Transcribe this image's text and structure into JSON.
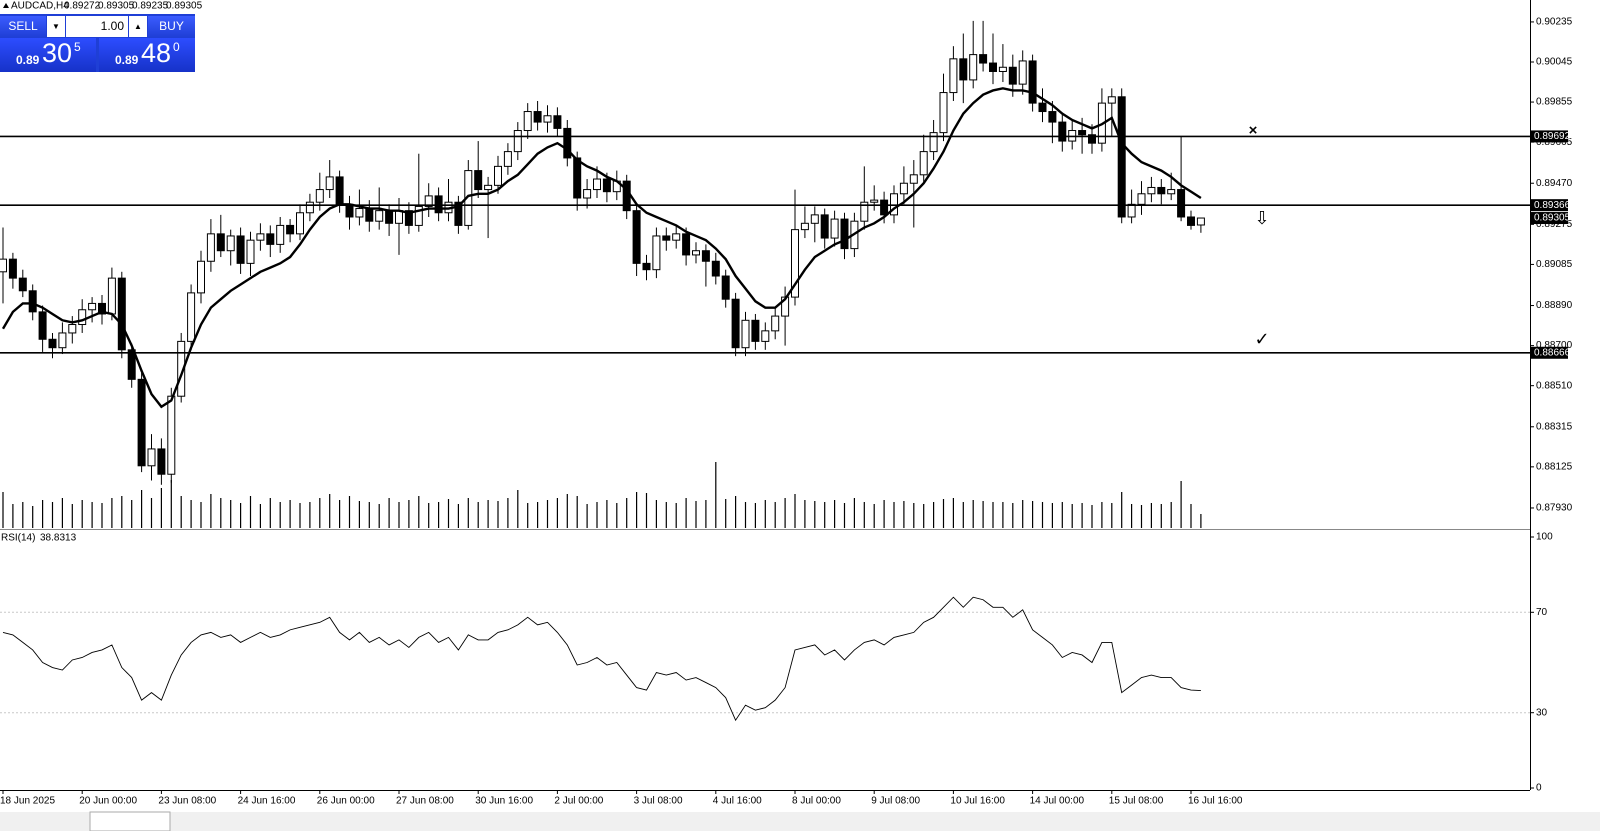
{
  "trade_panel": {
    "sell": "SELL",
    "lot": "1.00",
    "buy": "BUY",
    "bid": {
      "big": "0.89",
      "pips": "30",
      "point": "5"
    },
    "ask": {
      "big": "0.89",
      "pips": "48",
      "point": "0"
    }
  },
  "chart_data": [
    {
      "type": "candlestick",
      "title": "AUDCAD,H4",
      "categories": [
        "18 Jun 2025",
        null,
        null,
        null,
        null,
        null,
        null,
        null,
        "20 Jun 00:00",
        null,
        null,
        null,
        null,
        null,
        null,
        null,
        "23 Jun 08:00",
        null,
        null,
        null,
        null,
        null,
        null,
        null,
        "24 Jun 16:00",
        null,
        null,
        null,
        null,
        null,
        null,
        null,
        "26 Jun 00:00",
        null,
        null,
        null,
        null,
        null,
        null,
        null,
        "27 Jun 08:00",
        null,
        null,
        null,
        null,
        null,
        null,
        null,
        "30 Jun 16:00",
        null,
        null,
        null,
        null,
        null,
        null,
        null,
        "2 Jul 00:00",
        null,
        null,
        null,
        null,
        null,
        null,
        null,
        "3 Jul 08:00",
        null,
        null,
        null,
        null,
        null,
        null,
        null,
        "4 Jul 16:00",
        null,
        null,
        null,
        null,
        null,
        null,
        null,
        "8 Jul 00:00",
        null,
        null,
        null,
        null,
        null,
        null,
        null,
        "9 Jul 08:00",
        null,
        null,
        null,
        null,
        null,
        null,
        null,
        "10 Jul 16:00",
        null,
        null,
        null,
        null,
        null,
        null,
        null,
        "14 Jul 00:00",
        null,
        null,
        null,
        null,
        null,
        null,
        null,
        "15 Jul 08:00",
        null,
        null,
        null,
        null,
        null,
        null,
        null,
        "16 Jul 16:00",
        null
      ],
      "ohlc": [
        [
          0.8905,
          0.8926,
          0.889,
          0.8911
        ],
        [
          0.8911,
          0.8914,
          0.8897,
          0.8902
        ],
        [
          0.8902,
          0.8906,
          0.8893,
          0.8896
        ],
        [
          0.8896,
          0.8899,
          0.8882,
          0.8886
        ],
        [
          0.8886,
          0.8889,
          0.8867,
          0.8873
        ],
        [
          0.8873,
          0.8876,
          0.8864,
          0.8869
        ],
        [
          0.8869,
          0.8881,
          0.8866,
          0.8876
        ],
        [
          0.8876,
          0.8884,
          0.8871,
          0.888
        ],
        [
          0.888,
          0.8892,
          0.8876,
          0.8887
        ],
        [
          0.8887,
          0.8893,
          0.8881,
          0.889
        ],
        [
          0.889,
          0.8894,
          0.888,
          0.8885
        ],
        [
          0.8885,
          0.8907,
          0.8882,
          0.8902
        ],
        [
          0.8902,
          0.8905,
          0.8864,
          0.8868
        ],
        [
          0.8868,
          0.8871,
          0.885,
          0.8854
        ],
        [
          0.8854,
          0.8857,
          0.881,
          0.8813
        ],
        [
          0.8813,
          0.8828,
          0.8806,
          0.8821
        ],
        [
          0.8821,
          0.8826,
          0.8804,
          0.8809
        ],
        [
          0.8809,
          0.885,
          0.8805,
          0.8846
        ],
        [
          0.8846,
          0.8876,
          0.8843,
          0.8872
        ],
        [
          0.8872,
          0.8899,
          0.8868,
          0.8895
        ],
        [
          0.8895,
          0.8915,
          0.889,
          0.891
        ],
        [
          0.891,
          0.893,
          0.8905,
          0.8923
        ],
        [
          0.8923,
          0.8932,
          0.8912,
          0.8915
        ],
        [
          0.8915,
          0.8925,
          0.8908,
          0.8922
        ],
        [
          0.8922,
          0.8926,
          0.8904,
          0.8909
        ],
        [
          0.8909,
          0.8924,
          0.8903,
          0.892
        ],
        [
          0.892,
          0.8928,
          0.8915,
          0.8923
        ],
        [
          0.8923,
          0.8927,
          0.8912,
          0.8918
        ],
        [
          0.8918,
          0.8931,
          0.8914,
          0.8927
        ],
        [
          0.8927,
          0.893,
          0.8919,
          0.8923
        ],
        [
          0.8923,
          0.8937,
          0.892,
          0.8933
        ],
        [
          0.8933,
          0.8942,
          0.8929,
          0.8938
        ],
        [
          0.8938,
          0.8952,
          0.8934,
          0.8944
        ],
        [
          0.8944,
          0.8958,
          0.894,
          0.895
        ],
        [
          0.895,
          0.8953,
          0.8933,
          0.8937
        ],
        [
          0.8937,
          0.8941,
          0.8925,
          0.8931
        ],
        [
          0.8931,
          0.8944,
          0.8927,
          0.8935
        ],
        [
          0.8935,
          0.8939,
          0.8924,
          0.8929
        ],
        [
          0.8929,
          0.8945,
          0.8925,
          0.8934
        ],
        [
          0.8934,
          0.8937,
          0.8922,
          0.8928
        ],
        [
          0.8928,
          0.894,
          0.8913,
          0.8934
        ],
        [
          0.8934,
          0.8938,
          0.8923,
          0.8927
        ],
        [
          0.8927,
          0.8961,
          0.8924,
          0.8936
        ],
        [
          0.8936,
          0.8947,
          0.8931,
          0.8941
        ],
        [
          0.8941,
          0.8945,
          0.8929,
          0.8933
        ],
        [
          0.8933,
          0.8949,
          0.8929,
          0.8938
        ],
        [
          0.8938,
          0.8941,
          0.8923,
          0.8927
        ],
        [
          0.8927,
          0.8958,
          0.8925,
          0.8953
        ],
        [
          0.8953,
          0.8967,
          0.894,
          0.8944
        ],
        [
          0.8944,
          0.895,
          0.8921,
          0.8946
        ],
        [
          0.8946,
          0.896,
          0.8942,
          0.8955
        ],
        [
          0.8955,
          0.8966,
          0.8951,
          0.8962
        ],
        [
          0.8962,
          0.8976,
          0.8958,
          0.8972
        ],
        [
          0.8972,
          0.8985,
          0.8968,
          0.8981
        ],
        [
          0.8981,
          0.8986,
          0.8972,
          0.8976
        ],
        [
          0.8976,
          0.8984,
          0.8971,
          0.8979
        ],
        [
          0.8979,
          0.8983,
          0.8969,
          0.8973
        ],
        [
          0.8973,
          0.8977,
          0.8955,
          0.8959
        ],
        [
          0.8959,
          0.8962,
          0.8934,
          0.894
        ],
        [
          0.894,
          0.8949,
          0.8935,
          0.8944
        ],
        [
          0.8944,
          0.8955,
          0.894,
          0.8949
        ],
        [
          0.8949,
          0.8952,
          0.8938,
          0.8943
        ],
        [
          0.8943,
          0.8953,
          0.8939,
          0.8948
        ],
        [
          0.8948,
          0.8951,
          0.893,
          0.8934
        ],
        [
          0.8934,
          0.8937,
          0.8903,
          0.8909
        ],
        [
          0.8909,
          0.8913,
          0.8901,
          0.8906
        ],
        [
          0.8906,
          0.8926,
          0.8902,
          0.8922
        ],
        [
          0.8922,
          0.8926,
          0.8915,
          0.892
        ],
        [
          0.892,
          0.8927,
          0.8916,
          0.8923
        ],
        [
          0.8923,
          0.8926,
          0.8908,
          0.8913
        ],
        [
          0.8913,
          0.8919,
          0.8909,
          0.8915
        ],
        [
          0.8915,
          0.8918,
          0.8898,
          0.891
        ],
        [
          0.891,
          0.8914,
          0.8899,
          0.8903
        ],
        [
          0.8903,
          0.8906,
          0.8888,
          0.8892
        ],
        [
          0.8892,
          0.8895,
          0.8865,
          0.8869
        ],
        [
          0.8869,
          0.8886,
          0.8865,
          0.8882
        ],
        [
          0.8882,
          0.8885,
          0.8868,
          0.8872
        ],
        [
          0.8872,
          0.8881,
          0.8868,
          0.8877
        ],
        [
          0.8877,
          0.8888,
          0.8873,
          0.8884
        ],
        [
          0.8884,
          0.8898,
          0.887,
          0.8893
        ],
        [
          0.8893,
          0.8944,
          0.8889,
          0.8925
        ],
        [
          0.8925,
          0.8936,
          0.8921,
          0.8928
        ],
        [
          0.8928,
          0.8936,
          0.8919,
          0.8932
        ],
        [
          0.8932,
          0.8935,
          0.8916,
          0.8921
        ],
        [
          0.8921,
          0.8934,
          0.8917,
          0.893
        ],
        [
          0.893,
          0.8933,
          0.8911,
          0.8916
        ],
        [
          0.8916,
          0.8933,
          0.8912,
          0.8929
        ],
        [
          0.8929,
          0.8955,
          0.8925,
          0.8938
        ],
        [
          0.8938,
          0.8946,
          0.8934,
          0.8939
        ],
        [
          0.8939,
          0.8943,
          0.8928,
          0.8932
        ],
        [
          0.8932,
          0.8946,
          0.8928,
          0.8942
        ],
        [
          0.8942,
          0.8955,
          0.8937,
          0.8947
        ],
        [
          0.8947,
          0.8958,
          0.8926,
          0.8951
        ],
        [
          0.8951,
          0.897,
          0.8947,
          0.8962
        ],
        [
          0.8962,
          0.8977,
          0.8958,
          0.8971
        ],
        [
          0.8971,
          0.8999,
          0.8967,
          0.899
        ],
        [
          0.899,
          0.9012,
          0.8986,
          0.9006
        ],
        [
          0.9006,
          0.9018,
          0.8985,
          0.8996
        ],
        [
          0.8996,
          0.9024,
          0.8992,
          0.9008
        ],
        [
          0.9008,
          0.9024,
          0.9,
          0.9004
        ],
        [
          0.9004,
          0.9018,
          0.8994,
          0.9
        ],
        [
          0.9,
          0.9013,
          0.8995,
          0.9002
        ],
        [
          0.9002,
          0.9008,
          0.8988,
          0.8994
        ],
        [
          0.8994,
          0.901,
          0.8989,
          0.9005
        ],
        [
          0.9005,
          0.9008,
          0.8981,
          0.8985
        ],
        [
          0.8985,
          0.8992,
          0.8976,
          0.8981
        ],
        [
          0.8981,
          0.8986,
          0.8966,
          0.8976
        ],
        [
          0.8976,
          0.898,
          0.8962,
          0.8967
        ],
        [
          0.8967,
          0.8977,
          0.8963,
          0.8972
        ],
        [
          0.8972,
          0.8978,
          0.8961,
          0.897
        ],
        [
          0.897,
          0.8975,
          0.8961,
          0.8966
        ],
        [
          0.8966,
          0.8992,
          0.8962,
          0.8985
        ],
        [
          0.8985,
          0.8992,
          0.8969,
          0.8988
        ],
        [
          0.8988,
          0.8992,
          0.8928,
          0.8931
        ],
        [
          0.8931,
          0.8944,
          0.8928,
          0.8937
        ],
        [
          0.8937,
          0.8948,
          0.8932,
          0.8942
        ],
        [
          0.8942,
          0.895,
          0.8938,
          0.8945
        ],
        [
          0.8945,
          0.8949,
          0.8937,
          0.8942
        ],
        [
          0.8942,
          0.8952,
          0.8939,
          0.8944
        ],
        [
          0.8944,
          0.8969,
          0.8929,
          0.8931
        ],
        [
          0.8931,
          0.8934,
          0.8925,
          0.8927
        ],
        [
          0.89272,
          0.89305,
          0.89235,
          0.89305
        ]
      ],
      "volume": [
        1800,
        1200,
        1300,
        1100,
        1400,
        1300,
        1500,
        1200,
        1400,
        1300,
        1250,
        1500,
        1600,
        1400,
        1900,
        1500,
        2000,
        2400,
        1600,
        1400,
        1300,
        1700,
        1500,
        1400,
        1250,
        1600,
        1200,
        1500,
        1300,
        1400,
        1250,
        1300,
        1500,
        1700,
        1400,
        1600,
        1350,
        1300,
        1200,
        1500,
        1300,
        1400,
        1600,
        1250,
        1300,
        1450,
        1200,
        1500,
        1300,
        1400,
        1350,
        1500,
        1900,
        1250,
        1300,
        1400,
        1500,
        1700,
        1600,
        1200,
        1300,
        1400,
        1250,
        1500,
        1800,
        1750,
        1400,
        1300,
        1250,
        1500,
        1350,
        1400,
        3300,
        1450,
        1600,
        1300,
        1250,
        1400,
        1300,
        1500,
        1700,
        1400,
        1350,
        1300,
        1400,
        1250,
        1500,
        1300,
        1200,
        1400,
        1300,
        1350,
        1250,
        1200,
        1300,
        1450,
        1500,
        1300,
        1400,
        1350,
        1300,
        1300,
        1250,
        1400,
        1350,
        1300,
        1250,
        1300,
        1200,
        1250,
        1150,
        1300,
        1250,
        1800,
        1200,
        1150,
        1250,
        1200,
        1300,
        2350,
        1200,
        700
      ],
      "ma": [
        0.8878,
        0.8886,
        0.889,
        0.889,
        0.8888,
        0.8885,
        0.8882,
        0.8881,
        0.8882,
        0.8884,
        0.8886,
        0.8885,
        0.888,
        0.887,
        0.8858,
        0.8847,
        0.8841,
        0.8844,
        0.8856,
        0.8869,
        0.888,
        0.8888,
        0.8892,
        0.8896,
        0.8899,
        0.8902,
        0.8905,
        0.8907,
        0.8909,
        0.8912,
        0.8918,
        0.8925,
        0.8931,
        0.8935,
        0.8937,
        0.8937,
        0.8936,
        0.8935,
        0.8935,
        0.8934,
        0.8934,
        0.8933,
        0.8934,
        0.8935,
        0.8935,
        0.8935,
        0.8936,
        0.8941,
        0.8942,
        0.8942,
        0.8944,
        0.8948,
        0.8951,
        0.8956,
        0.8961,
        0.8964,
        0.8966,
        0.8963,
        0.8958,
        0.8955,
        0.8953,
        0.895,
        0.8948,
        0.8944,
        0.8937,
        0.8933,
        0.8931,
        0.8929,
        0.8927,
        0.8924,
        0.8922,
        0.892,
        0.8916,
        0.8911,
        0.8903,
        0.8897,
        0.8891,
        0.8888,
        0.8888,
        0.8892,
        0.8899,
        0.8906,
        0.8912,
        0.8915,
        0.8918,
        0.892,
        0.8923,
        0.8926,
        0.8928,
        0.8931,
        0.8935,
        0.8938,
        0.8942,
        0.8947,
        0.8954,
        0.8962,
        0.8972,
        0.898,
        0.8985,
        0.8989,
        0.8991,
        0.8992,
        0.8991,
        0.8991,
        0.899,
        0.8987,
        0.8984,
        0.898,
        0.8977,
        0.8975,
        0.8973,
        0.8975,
        0.8978,
        0.8966,
        0.8961,
        0.8957,
        0.8955,
        0.8953,
        0.895,
        0.8946,
        0.8943,
        0.894
      ],
      "color_up": "#ffffff",
      "color_down": "#000000",
      "color": "#000000",
      "ylim": [
        0.87835,
        0.90339
      ],
      "yticks": [
        0.90235,
        0.90045,
        0.89855,
        0.89665,
        {
          "value": 0.8947,
          "label": "0.89470"
        },
        0.89275,
        0.89085,
        {
          "value": 0.8889,
          "label": "0.88890"
        },
        {
          "value": 0.887,
          "label": "0.88700"
        },
        {
          "value": 0.8851,
          "label": "0.88510"
        },
        0.88315,
        0.88125,
        {
          "value": 0.8793,
          "label": "0.87930"
        }
      ],
      "levels": [
        0.89692,
        0.89366,
        0.88666
      ]
    },
    {
      "type": "line",
      "title": "RSI(14)",
      "values": [
        62,
        61,
        58,
        55,
        50,
        48,
        47,
        51,
        52,
        54,
        55,
        57,
        48,
        44,
        35,
        38,
        35,
        45,
        53,
        58,
        61,
        62,
        60,
        61,
        58,
        60,
        62,
        60,
        61,
        63,
        64,
        65,
        66,
        68,
        62,
        59,
        62,
        58,
        60,
        57,
        59,
        56,
        60,
        62,
        58,
        60,
        55,
        61,
        59,
        59,
        62,
        63,
        65,
        68,
        65,
        66,
        62,
        57,
        49,
        50,
        52,
        49,
        50,
        45,
        40,
        39,
        46,
        45,
        46,
        43,
        44,
        42,
        40,
        36,
        27,
        33,
        31,
        32,
        35,
        40,
        55,
        56,
        57,
        53,
        55,
        51,
        55,
        58,
        59,
        57,
        60,
        61,
        62,
        66,
        68,
        72,
        76,
        72,
        76,
        75,
        72,
        72,
        68,
        71,
        63,
        60,
        57,
        52,
        54,
        53,
        50,
        58,
        58,
        38,
        41,
        44,
        45,
        44,
        44,
        40,
        39,
        38.8313
      ],
      "color": "#000000",
      "ylim": [
        0,
        100
      ],
      "yticks": [
        100,
        70,
        30,
        0
      ]
    }
  ]
}
